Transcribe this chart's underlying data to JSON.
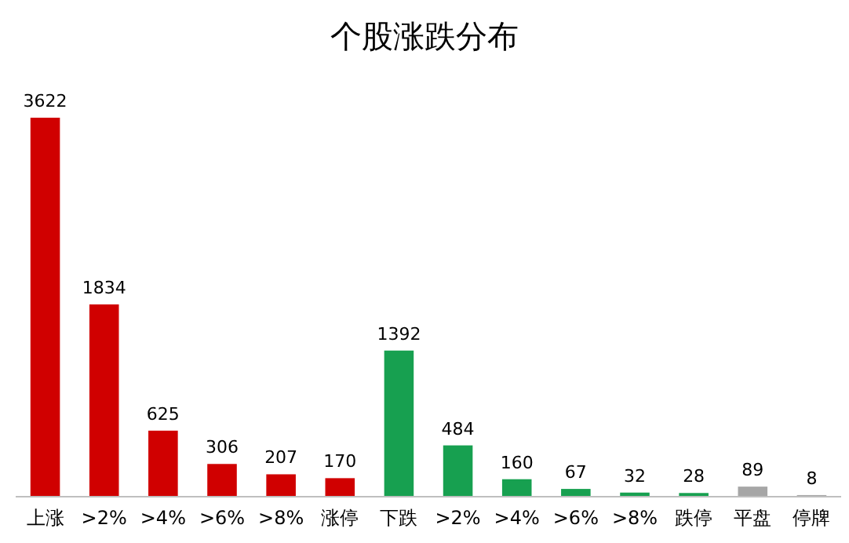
{
  "chart_data": {
    "type": "bar",
    "title": "个股涨跌分布",
    "categories": [
      "上涨",
      ">2%",
      ">4%",
      ">6%",
      ">8%",
      "涨停",
      "下跌",
      ">2%",
      ">4%",
      ">6%",
      ">8%",
      "跌停",
      "平盘",
      "停牌"
    ],
    "values": [
      3622,
      1834,
      625,
      306,
      207,
      170,
      1392,
      484,
      160,
      67,
      32,
      28,
      89,
      8
    ],
    "colors": [
      "#d00000",
      "#d00000",
      "#d00000",
      "#d00000",
      "#d00000",
      "#d00000",
      "#17a050",
      "#17a050",
      "#17a050",
      "#17a050",
      "#17a050",
      "#17a050",
      "#a6a6a6",
      "#a6a6a6"
    ],
    "data_labels": true
  }
}
